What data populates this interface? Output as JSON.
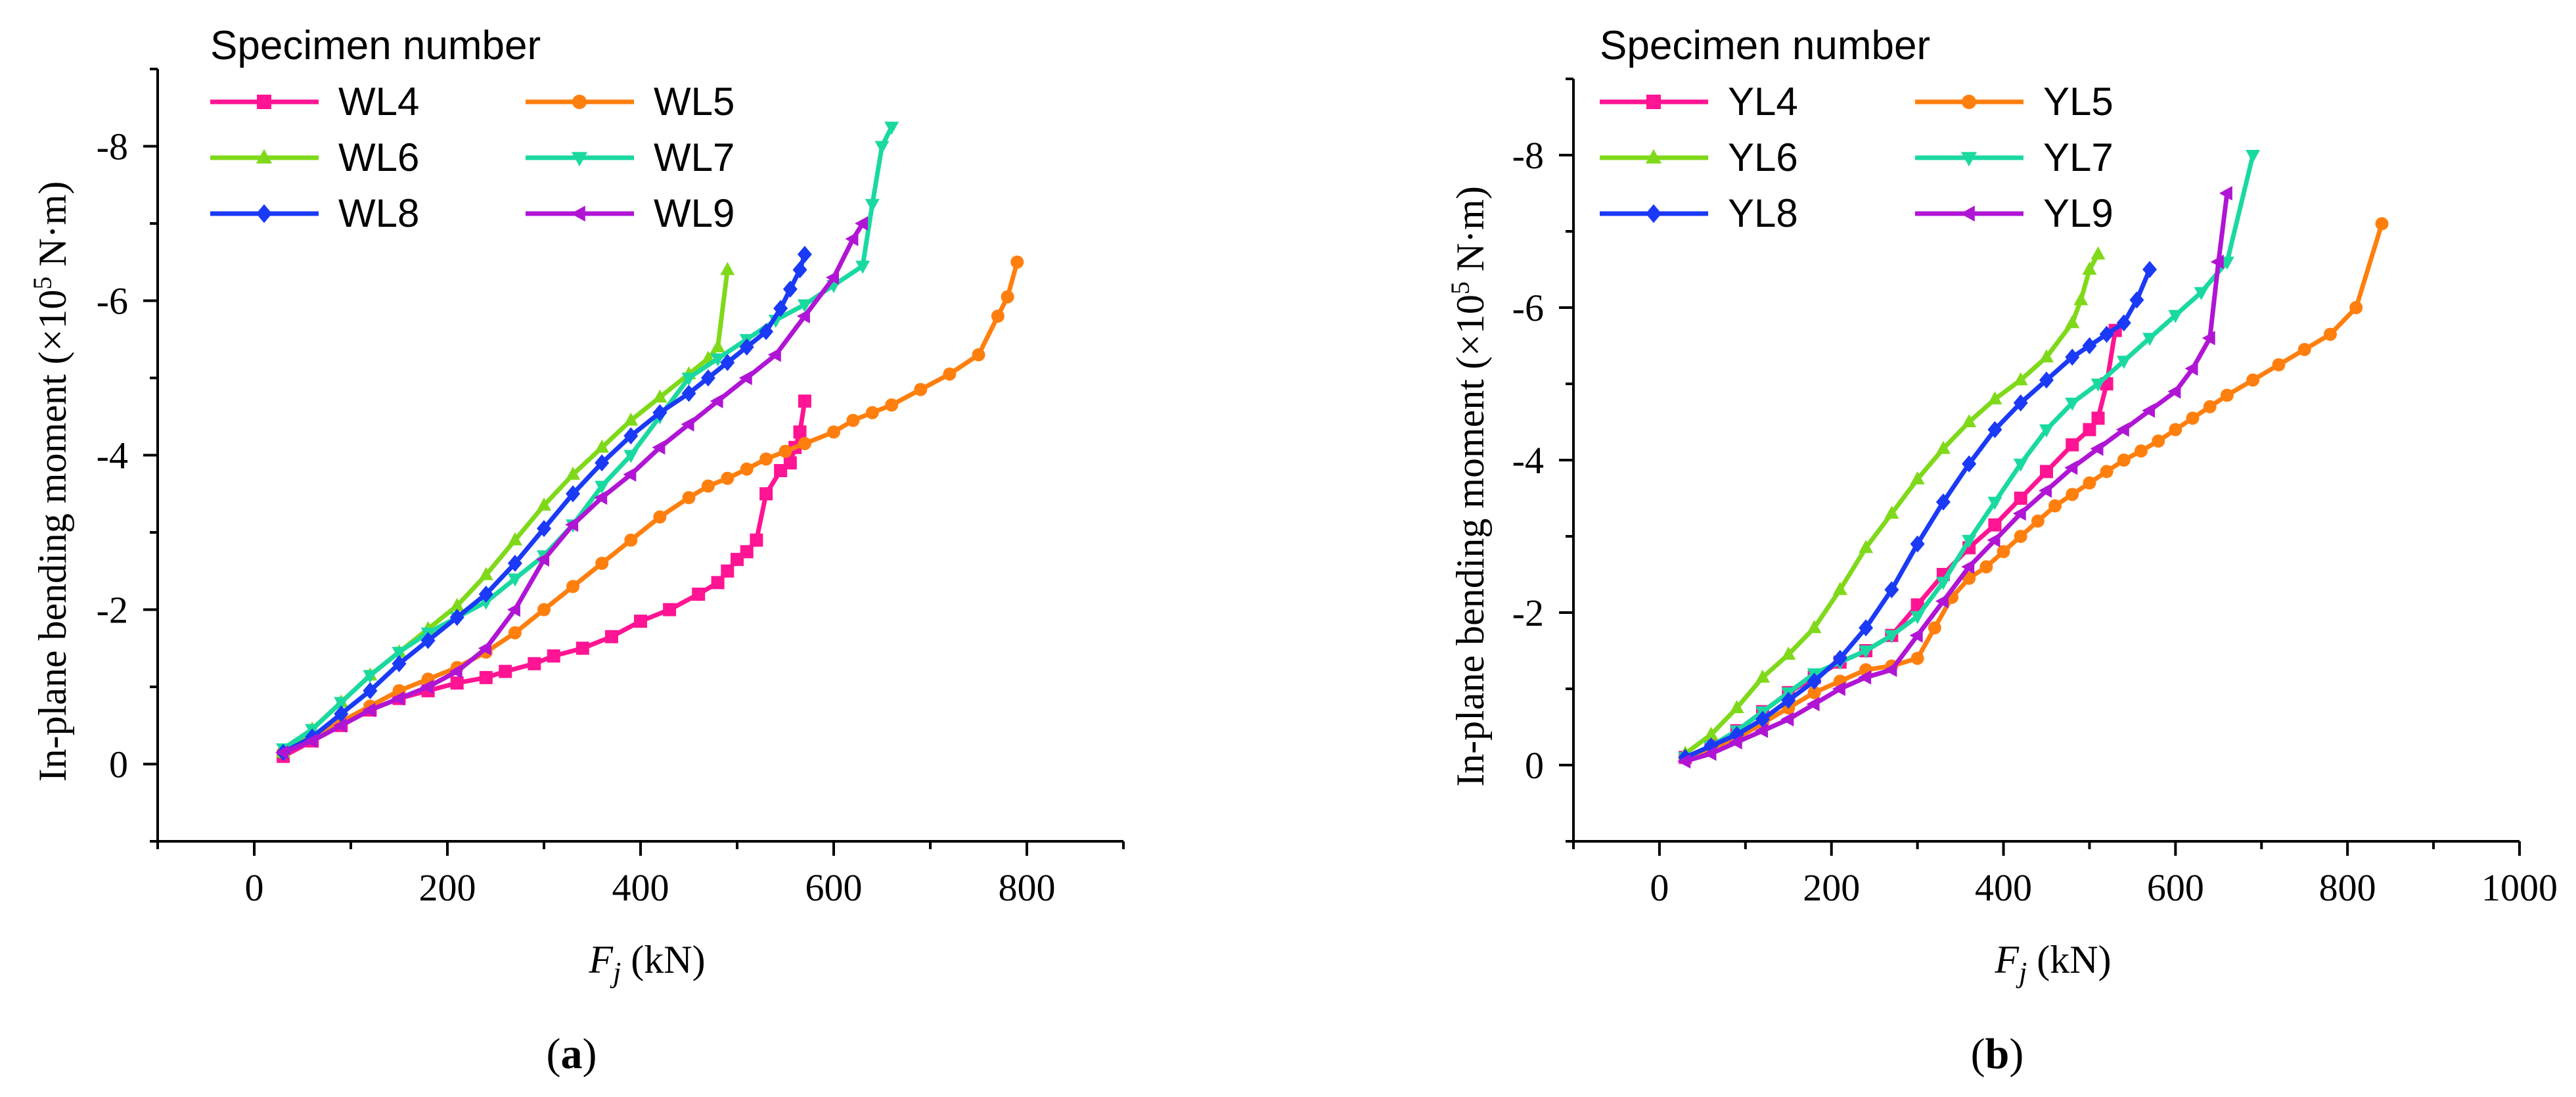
{
  "chart_data": [
    {
      "type": "line",
      "caption": "(a)",
      "caption_letter": "a",
      "xlabel_var": "F",
      "xlabel_sub": "j",
      "xlabel_unit": " (kN)",
      "ylabel": "In-plane bending moment (×10",
      "ylabel_exp": "5",
      "ylabel_unit": " N·m)",
      "xlim": [
        -100,
        900
      ],
      "ylim": [
        1,
        -9
      ],
      "xticks": [
        0,
        200,
        400,
        600,
        800
      ],
      "xtick_labels": [
        "0",
        "200",
        "400",
        "600",
        "800"
      ],
      "yticks": [
        0,
        -2,
        -4,
        -6,
        -8
      ],
      "ytick_labels": [
        "0",
        "-2",
        "-4",
        "-6",
        "-8"
      ],
      "legend_title": "Specimen number",
      "series": [
        {
          "name": "WL4",
          "color": "#ff1493",
          "marker": "square",
          "x": [
            30,
            60,
            90,
            120,
            150,
            180,
            210,
            240,
            260,
            290,
            310,
            340,
            370,
            400,
            430,
            460,
            480,
            490,
            500,
            510,
            520,
            530,
            545,
            555,
            560,
            565,
            570
          ],
          "y": [
            -0.1,
            -0.3,
            -0.5,
            -0.7,
            -0.85,
            -0.95,
            -1.05,
            -1.12,
            -1.2,
            -1.3,
            -1.4,
            -1.5,
            -1.65,
            -1.85,
            -2.0,
            -2.2,
            -2.35,
            -2.5,
            -2.65,
            -2.75,
            -2.9,
            -3.5,
            -3.8,
            -3.9,
            -4.1,
            -4.3,
            -4.7
          ]
        },
        {
          "name": "WL5",
          "color": "#ff7f0e",
          "marker": "circle",
          "x": [
            30,
            60,
            90,
            120,
            150,
            180,
            210,
            240,
            270,
            300,
            330,
            360,
            390,
            420,
            450,
            470,
            490,
            510,
            530,
            550,
            570,
            600,
            620,
            640,
            660,
            690,
            720,
            750,
            770,
            780,
            790
          ],
          "y": [
            -0.15,
            -0.35,
            -0.55,
            -0.75,
            -0.95,
            -1.1,
            -1.25,
            -1.45,
            -1.7,
            -2.0,
            -2.3,
            -2.6,
            -2.9,
            -3.2,
            -3.45,
            -3.6,
            -3.7,
            -3.82,
            -3.95,
            -4.05,
            -4.15,
            -4.3,
            -4.45,
            -4.55,
            -4.65,
            -4.85,
            -5.05,
            -5.3,
            -5.8,
            -6.05,
            -6.5
          ]
        },
        {
          "name": "WL6",
          "color": "#7fd91a",
          "marker": "triangle-up",
          "x": [
            30,
            60,
            90,
            120,
            150,
            180,
            210,
            240,
            270,
            300,
            330,
            360,
            390,
            420,
            450,
            470,
            480,
            490
          ],
          "y": [
            -0.15,
            -0.45,
            -0.8,
            -1.15,
            -1.45,
            -1.75,
            -2.05,
            -2.45,
            -2.9,
            -3.35,
            -3.75,
            -4.1,
            -4.45,
            -4.75,
            -5.05,
            -5.25,
            -5.4,
            -6.4
          ]
        },
        {
          "name": "WL7",
          "color": "#1ad9a0",
          "marker": "triangle-down",
          "x": [
            30,
            60,
            90,
            120,
            150,
            180,
            210,
            240,
            270,
            300,
            330,
            360,
            390,
            420,
            450,
            480,
            510,
            540,
            570,
            600,
            630,
            640,
            650,
            660
          ],
          "y": [
            -0.2,
            -0.45,
            -0.8,
            -1.15,
            -1.45,
            -1.7,
            -1.9,
            -2.1,
            -2.4,
            -2.7,
            -3.1,
            -3.6,
            -4.0,
            -4.5,
            -5.0,
            -5.25,
            -5.5,
            -5.75,
            -5.95,
            -6.2,
            -6.45,
            -7.25,
            -8.0,
            -8.25
          ]
        },
        {
          "name": "WL8",
          "color": "#1a3af5",
          "marker": "diamond",
          "x": [
            30,
            60,
            90,
            120,
            150,
            180,
            210,
            240,
            270,
            300,
            330,
            360,
            390,
            420,
            450,
            470,
            490,
            510,
            530,
            545,
            555,
            565,
            570
          ],
          "y": [
            -0.15,
            -0.35,
            -0.65,
            -0.95,
            -1.3,
            -1.6,
            -1.9,
            -2.2,
            -2.6,
            -3.05,
            -3.5,
            -3.9,
            -4.25,
            -4.55,
            -4.8,
            -5.0,
            -5.2,
            -5.4,
            -5.6,
            -5.9,
            -6.15,
            -6.4,
            -6.6
          ]
        },
        {
          "name": "WL9",
          "color": "#b015d4",
          "marker": "triangle-left",
          "x": [
            30,
            60,
            90,
            120,
            150,
            180,
            210,
            240,
            270,
            300,
            330,
            360,
            390,
            420,
            450,
            480,
            510,
            540,
            570,
            600,
            620,
            630
          ],
          "y": [
            -0.15,
            -0.3,
            -0.5,
            -0.7,
            -0.85,
            -1.0,
            -1.2,
            -1.5,
            -2.0,
            -2.65,
            -3.1,
            -3.45,
            -3.75,
            -4.1,
            -4.4,
            -4.7,
            -5.0,
            -5.3,
            -5.8,
            -6.3,
            -6.8,
            -7.0
          ]
        }
      ]
    },
    {
      "type": "line",
      "caption": "(b)",
      "caption_letter": "b",
      "xlabel_var": "F",
      "xlabel_sub": "j",
      "xlabel_unit": " (kN)",
      "ylabel": "In-plane bending moment (×10",
      "ylabel_exp": "5",
      "ylabel_unit": " N·m)",
      "xlim": [
        -100,
        1000
      ],
      "ylim": [
        1,
        -9
      ],
      "xticks": [
        0,
        200,
        400,
        600,
        800,
        1000
      ],
      "xtick_labels": [
        "0",
        "200",
        "400",
        "600",
        "800",
        "1000"
      ],
      "yticks": [
        0,
        -2,
        -4,
        -6,
        -8
      ],
      "ytick_labels": [
        "0",
        "-2",
        "-4",
        "-6",
        "-8"
      ],
      "legend_title": "Specimen number",
      "series": [
        {
          "name": "YL4",
          "color": "#ff1493",
          "marker": "square",
          "x": [
            30,
            60,
            90,
            120,
            150,
            180,
            210,
            240,
            270,
            300,
            330,
            360,
            390,
            420,
            450,
            480,
            500,
            510,
            520,
            530
          ],
          "y": [
            -0.1,
            -0.25,
            -0.45,
            -0.7,
            -0.95,
            -1.15,
            -1.35,
            -1.5,
            -1.7,
            -2.1,
            -2.5,
            -2.85,
            -3.15,
            -3.5,
            -3.85,
            -4.2,
            -4.4,
            -4.55,
            -5.0,
            -5.7
          ]
        },
        {
          "name": "YL5",
          "color": "#ff7f0e",
          "marker": "circle",
          "x": [
            30,
            60,
            90,
            120,
            150,
            180,
            210,
            240,
            270,
            300,
            320,
            340,
            360,
            380,
            400,
            420,
            440,
            460,
            480,
            500,
            520,
            540,
            560,
            580,
            600,
            620,
            640,
            660,
            690,
            720,
            750,
            780,
            810,
            840
          ],
          "y": [
            -0.1,
            -0.2,
            -0.35,
            -0.55,
            -0.75,
            -0.95,
            -1.1,
            -1.25,
            -1.3,
            -1.4,
            -1.8,
            -2.2,
            -2.45,
            -2.6,
            -2.8,
            -3.0,
            -3.2,
            -3.4,
            -3.55,
            -3.7,
            -3.85,
            -4.0,
            -4.12,
            -4.25,
            -4.4,
            -4.55,
            -4.7,
            -4.85,
            -5.05,
            -5.25,
            -5.45,
            -5.65,
            -6.0,
            -7.1
          ]
        },
        {
          "name": "YL6",
          "color": "#7fd91a",
          "marker": "triangle-up",
          "x": [
            30,
            60,
            90,
            120,
            150,
            180,
            210,
            240,
            270,
            300,
            330,
            360,
            390,
            420,
            450,
            480,
            490,
            500,
            510
          ],
          "y": [
            -0.15,
            -0.4,
            -0.75,
            -1.15,
            -1.45,
            -1.8,
            -2.3,
            -2.85,
            -3.3,
            -3.75,
            -4.15,
            -4.5,
            -4.8,
            -5.05,
            -5.35,
            -5.8,
            -6.1,
            -6.5,
            -6.7
          ]
        },
        {
          "name": "YL7",
          "color": "#1ad9a0",
          "marker": "triangle-down",
          "x": [
            30,
            60,
            90,
            120,
            150,
            180,
            210,
            240,
            270,
            300,
            330,
            360,
            390,
            420,
            450,
            480,
            510,
            540,
            570,
            600,
            630,
            660,
            690
          ],
          "y": [
            -0.1,
            -0.25,
            -0.45,
            -0.7,
            -0.95,
            -1.2,
            -1.35,
            -1.5,
            -1.7,
            -1.95,
            -2.4,
            -2.95,
            -3.45,
            -3.95,
            -4.4,
            -4.75,
            -5.0,
            -5.3,
            -5.6,
            -5.9,
            -6.2,
            -6.6,
            -8.0
          ]
        },
        {
          "name": "YL8",
          "color": "#1a3af5",
          "marker": "diamond",
          "x": [
            30,
            60,
            90,
            120,
            150,
            180,
            210,
            240,
            270,
            300,
            330,
            360,
            390,
            420,
            450,
            480,
            500,
            520,
            540,
            555,
            570
          ],
          "y": [
            -0.1,
            -0.25,
            -0.4,
            -0.6,
            -0.85,
            -1.1,
            -1.4,
            -1.8,
            -2.3,
            -2.9,
            -3.45,
            -3.95,
            -4.4,
            -4.75,
            -5.05,
            -5.35,
            -5.5,
            -5.65,
            -5.8,
            -6.1,
            -6.5
          ]
        },
        {
          "name": "YL9",
          "color": "#b015d4",
          "marker": "triangle-left",
          "x": [
            30,
            60,
            90,
            120,
            150,
            180,
            210,
            240,
            270,
            300,
            330,
            360,
            390,
            420,
            450,
            480,
            510,
            540,
            570,
            600,
            620,
            640,
            650,
            660
          ],
          "y": [
            -0.05,
            -0.15,
            -0.3,
            -0.45,
            -0.6,
            -0.8,
            -1.0,
            -1.15,
            -1.25,
            -1.7,
            -2.15,
            -2.6,
            -2.95,
            -3.3,
            -3.6,
            -3.9,
            -4.15,
            -4.4,
            -4.65,
            -4.9,
            -5.2,
            -5.6,
            -6.6,
            -7.5
          ]
        }
      ]
    }
  ]
}
